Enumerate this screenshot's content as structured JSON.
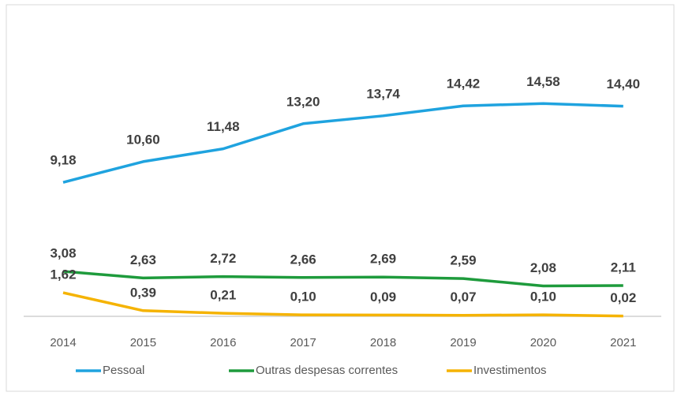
{
  "chart_data": {
    "type": "line",
    "categories": [
      "2014",
      "2015",
      "2016",
      "2017",
      "2018",
      "2019",
      "2020",
      "2021"
    ],
    "series": [
      {
        "name": "Pessoal",
        "color": "#1fa3df",
        "values": [
          9.18,
          10.6,
          11.48,
          13.2,
          13.74,
          14.42,
          14.58,
          14.4
        ],
        "value_labels": [
          "9,18",
          "10,60",
          "11,48",
          "13,20",
          "13,74",
          "14,42",
          "14,58",
          "14,40"
        ]
      },
      {
        "name": "Outras despesas correntes",
        "color": "#1e9b3c",
        "values": [
          3.08,
          2.63,
          2.72,
          2.66,
          2.69,
          2.59,
          2.08,
          2.11
        ],
        "value_labels": [
          "3,08",
          "2,63",
          "2,72",
          "2,66",
          "2,69",
          "2,59",
          "2,08",
          "2,11"
        ]
      },
      {
        "name": "Investimentos",
        "color": "#f5b301",
        "values": [
          1.62,
          0.39,
          0.21,
          0.1,
          0.09,
          0.07,
          0.1,
          0.02
        ],
        "value_labels": [
          "1,62",
          "0,39",
          "0,21",
          "0,10",
          "0,09",
          "0,07",
          "0,10",
          "0,02"
        ]
      }
    ],
    "ylim": [
      0,
      16
    ],
    "legend": "bottom"
  }
}
